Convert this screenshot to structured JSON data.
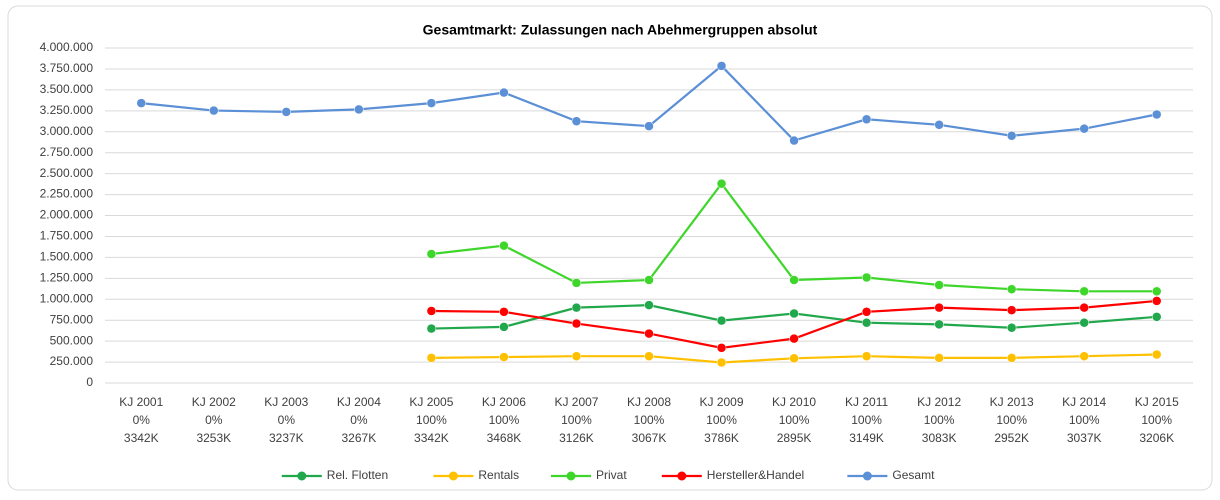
{
  "chart_data": {
    "type": "line",
    "title": "Gesamtmarkt: Zulassungen nach Abehmergruppen absolut",
    "categories": [
      [
        "KJ 2001",
        "0%",
        "3342K"
      ],
      [
        "KJ 2002",
        "0%",
        "3253K"
      ],
      [
        "KJ 2003",
        "0%",
        "3237K"
      ],
      [
        "KJ 2004",
        "0%",
        "3267K"
      ],
      [
        "KJ 2005",
        "100%",
        "3342K"
      ],
      [
        "KJ 2006",
        "100%",
        "3468K"
      ],
      [
        "KJ 2007",
        "100%",
        "3126K"
      ],
      [
        "KJ 2008",
        "100%",
        "3067K"
      ],
      [
        "KJ 2009",
        "100%",
        "3786K"
      ],
      [
        "KJ 2010",
        "100%",
        "2895K"
      ],
      [
        "KJ 2011",
        "100%",
        "3149K"
      ],
      [
        "KJ 2012",
        "100%",
        "3083K"
      ],
      [
        "KJ 2013",
        "100%",
        "2952K"
      ],
      [
        "KJ 2014",
        "100%",
        "3037K"
      ],
      [
        "KJ 2015",
        "100%",
        "3206K"
      ]
    ],
    "series": [
      {
        "name": "Rel. Flotten",
        "color": "#22a84c",
        "values": [
          null,
          null,
          null,
          null,
          650000,
          670000,
          900000,
          930000,
          745000,
          830000,
          720000,
          700000,
          660000,
          720000,
          790000
        ]
      },
      {
        "name": "Rentals",
        "color": "#ffc000",
        "values": [
          null,
          null,
          null,
          null,
          300000,
          310000,
          320000,
          320000,
          245000,
          295000,
          320000,
          300000,
          300000,
          320000,
          340000
        ]
      },
      {
        "name": "Privat",
        "color": "#3ed62a",
        "values": [
          null,
          null,
          null,
          null,
          1540000,
          1640000,
          1195000,
          1230000,
          2380000,
          1230000,
          1260000,
          1170000,
          1120000,
          1095000,
          1095000
        ]
      },
      {
        "name": "Hersteller&Handel",
        "color": "#ff0000",
        "values": [
          null,
          null,
          null,
          null,
          860000,
          850000,
          710000,
          590000,
          420000,
          530000,
          850000,
          900000,
          870000,
          900000,
          980000
        ]
      },
      {
        "name": "Gesamt",
        "color": "#5b8fd6",
        "values": [
          3342000,
          3253000,
          3237000,
          3267000,
          3342000,
          3468000,
          3126000,
          3067000,
          3786000,
          2895000,
          3149000,
          3083000,
          2952000,
          3037000,
          3206000
        ]
      }
    ],
    "ylim": [
      0,
      4000000
    ],
    "yticks": [
      0,
      {
        "value": 250000,
        "label": "250.000"
      },
      {
        "value": 500000,
        "label": "500.000"
      },
      {
        "value": 750000,
        "label": "750.000"
      },
      {
        "value": 1000000,
        "label": "1.000.000"
      },
      {
        "value": 1250000,
        "label": "1.250.000"
      },
      {
        "value": 1500000,
        "label": "1.500.000"
      },
      {
        "value": 1750000,
        "label": "1.750.000"
      },
      {
        "value": 2000000,
        "label": "2.000.000"
      },
      {
        "value": 2250000,
        "label": "2.250.000"
      },
      {
        "value": 2500000,
        "label": "2.500.000"
      },
      {
        "value": 2750000,
        "label": "2.750.000"
      },
      {
        "value": 3000000,
        "label": "3.000.000"
      },
      {
        "value": 3250000,
        "label": "3.250.000"
      },
      {
        "value": 3500000,
        "label": "3.500.000"
      },
      {
        "value": 3750000,
        "label": "3.750.000"
      },
      {
        "value": 4000000,
        "label": "4.000.000"
      }
    ],
    "grid": true,
    "legend": "bottom"
  }
}
